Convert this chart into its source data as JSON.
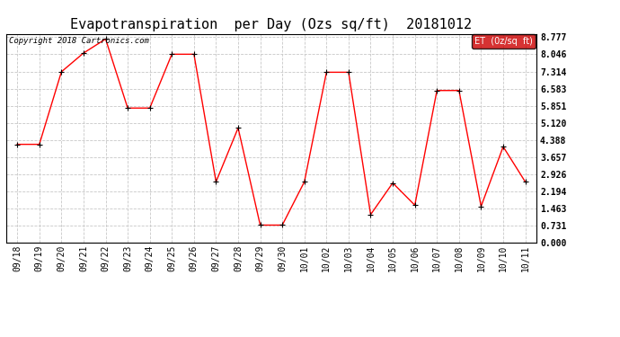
{
  "title": "Evapotranspiration  per Day (Ozs sq/ft)  20181012",
  "copyright_text": "Copyright 2018 Cartronics.com",
  "legend_label": "ET  (0z/sq  ft)",
  "dates": [
    "09/18",
    "09/19",
    "09/20",
    "09/21",
    "09/22",
    "09/23",
    "09/24",
    "09/25",
    "09/26",
    "09/27",
    "09/28",
    "09/29",
    "09/30",
    "10/01",
    "10/02",
    "10/03",
    "10/04",
    "10/05",
    "10/06",
    "10/07",
    "10/08",
    "10/09",
    "10/10",
    "10/11"
  ],
  "values": [
    4.2,
    4.2,
    7.3,
    8.1,
    8.7,
    5.75,
    5.75,
    8.05,
    8.05,
    2.6,
    4.9,
    0.75,
    0.75,
    2.6,
    7.28,
    7.28,
    1.2,
    2.55,
    1.6,
    6.5,
    6.5,
    1.55,
    4.1,
    2.6
  ],
  "line_color": "red",
  "marker_color": "black",
  "yticks": [
    0.0,
    0.731,
    1.463,
    2.194,
    2.926,
    3.657,
    4.388,
    5.12,
    5.851,
    6.583,
    7.314,
    8.046,
    8.777
  ],
  "ymax": 8.777,
  "ymin": 0.0,
  "grid_color": "#c8c8c8",
  "bg_color": "#ffffff",
  "legend_bg": "#cc0000",
  "legend_text_color": "#ffffff",
  "title_fontsize": 11,
  "tick_fontsize": 7,
  "copyright_fontsize": 6.5,
  "legend_fontsize": 7
}
